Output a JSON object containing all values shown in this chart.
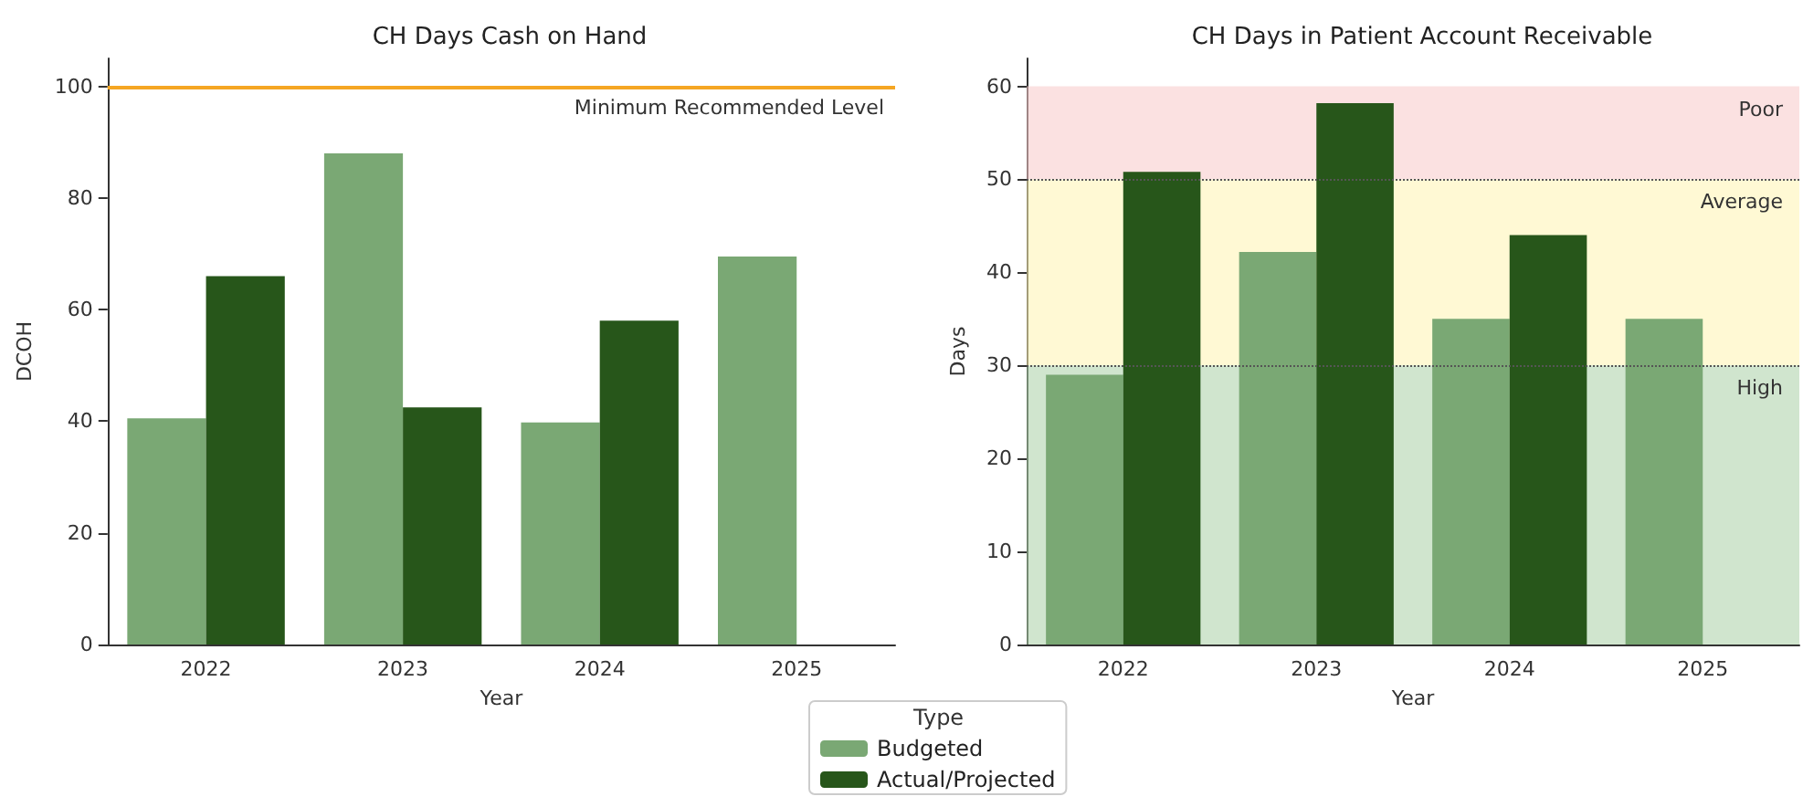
{
  "chart_data": [
    {
      "type": "bar",
      "title": "CH Days Cash on Hand",
      "xlabel": "Year",
      "ylabel": "DCOH",
      "categories": [
        "2022",
        "2023",
        "2024",
        "2025"
      ],
      "series": [
        {
          "color": "#7aa874",
          "values": [
            40.5,
            88,
            39.8,
            69.5
          ]
        },
        {
          "color": "#27561a",
          "values": [
            66,
            42.5,
            58,
            null
          ]
        }
      ],
      "ylim": [
        0,
        105
      ],
      "yticks": [
        0,
        20,
        40,
        60,
        80,
        100
      ],
      "ref_lines": [
        {
          "axis": "y",
          "value": 100,
          "label": "Minimum Recommended Level",
          "color": "#f5a623",
          "line_style": "solid"
        }
      ]
    },
    {
      "type": "bar",
      "title": "CH Days in Patient Account Receivable",
      "xlabel": "Year",
      "ylabel": "Days",
      "categories": [
        "2022",
        "2023",
        "2024",
        "2025"
      ],
      "series": [
        {
          "name": "Budgeted",
          "color": "#7aa874",
          "values": [
            29,
            42.2,
            35,
            35
          ]
        },
        {
          "name": "Actual/Projected",
          "color": "#27561a",
          "values": [
            50.8,
            58.2,
            44,
            null
          ]
        }
      ],
      "ylim": [
        0,
        63
      ],
      "yticks": [
        0,
        10,
        20,
        30,
        40,
        50,
        60
      ],
      "bands": [
        {
          "axis": "y",
          "from": 50,
          "to": 60,
          "label": "Poor",
          "color": "#f7c9c9"
        },
        {
          "axis": "y",
          "from": 30,
          "to": 50,
          "label": "Average",
          "color": "#fff4b0"
        },
        {
          "axis": "y",
          "from": 0,
          "to": 30,
          "label": "High",
          "color": "#a9cfa6"
        }
      ],
      "ref_lines": [
        {
          "axis": "y",
          "value": 50,
          "color": "#555555",
          "line_style": "dotted"
        },
        {
          "axis": "y",
          "value": 30,
          "color": "#555555",
          "line_style": "dotted"
        }
      ],
      "legend": "bottom",
      "legend_title": "Type"
    }
  ]
}
